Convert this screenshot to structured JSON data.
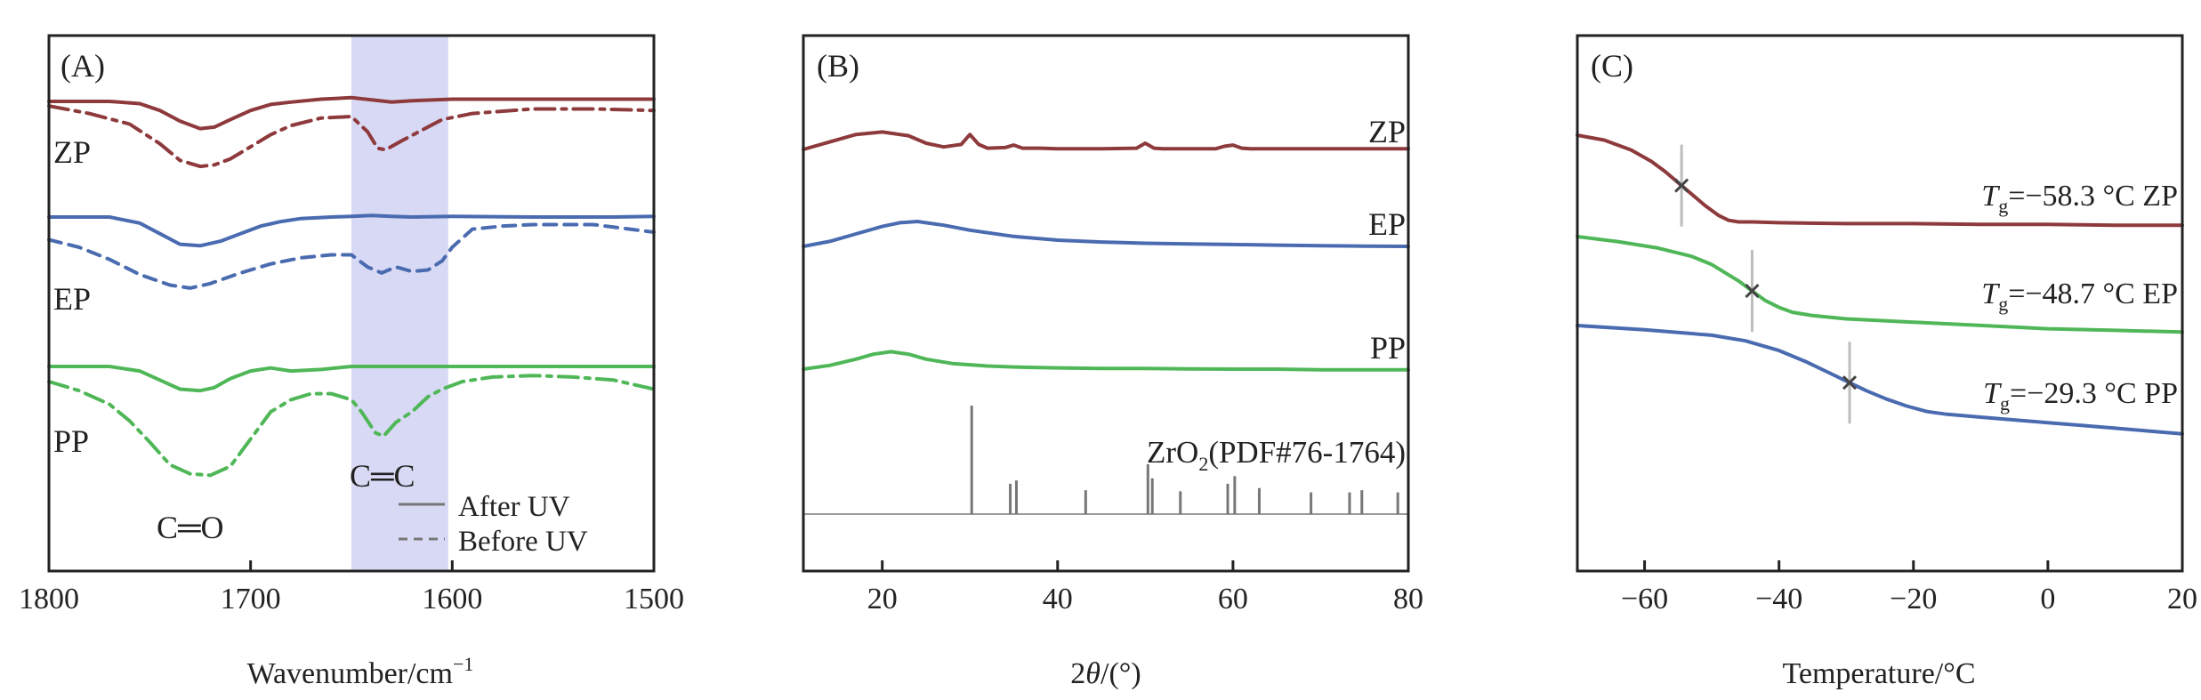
{
  "chart_data": [
    {
      "panel_label": "(A)",
      "type": "line",
      "title": "",
      "xlabel": "Wavenumber/cm",
      "xlabel_sup": "−1",
      "ylabel": "",
      "xlim": [
        1800,
        1500
      ],
      "x_reversed": true,
      "xticks": [
        "1800",
        "1700",
        "1600",
        "1500"
      ],
      "xtick_values": [
        1800,
        1700,
        1600,
        1500
      ],
      "highlight_band": {
        "from": 1650,
        "to": 1602,
        "color": "#d8d9f4"
      },
      "colors": {
        "ZP": "#8e3a3c",
        "EP": "#4a6bb0",
        "PP": "#4fb757"
      },
      "series_labels": [
        "ZP",
        "EP",
        "PP"
      ],
      "annotations": {
        "carbonyl": "C═O",
        "alkene": "C═C"
      },
      "legend": {
        "after": "After UV",
        "before": "Before UV",
        "position": "bottom-right"
      },
      "series": [
        {
          "name": "ZP After UV",
          "style": "solid",
          "color": "#8e3a3c",
          "x": [
            1800,
            1770,
            1755,
            1745,
            1735,
            1725,
            1718,
            1710,
            1700,
            1690,
            1680,
            1665,
            1650,
            1640,
            1630,
            1620,
            1600,
            1580,
            1560,
            1540,
            1500
          ],
          "y": [
            0.0,
            0.0,
            -0.15,
            -0.6,
            -1.3,
            -1.8,
            -1.7,
            -1.2,
            -0.6,
            -0.2,
            -0.05,
            0.15,
            0.25,
            0.1,
            -0.05,
            0.05,
            0.15,
            0.15,
            0.15,
            0.15,
            0.15
          ]
        },
        {
          "name": "ZP Before UV",
          "style": "dash-dot",
          "color": "#8e3a3c",
          "x": [
            1800,
            1780,
            1760,
            1745,
            1735,
            1725,
            1718,
            1710,
            1700,
            1690,
            1680,
            1665,
            1650,
            1642,
            1637,
            1633,
            1625,
            1615,
            1605,
            1590,
            1560,
            1530,
            1500
          ],
          "y": [
            -0.3,
            -0.8,
            -1.5,
            -2.8,
            -3.9,
            -4.3,
            -4.2,
            -3.8,
            -3.0,
            -2.2,
            -1.6,
            -1.1,
            -1.0,
            -2.0,
            -3.1,
            -3.2,
            -2.6,
            -1.9,
            -1.2,
            -0.8,
            -0.5,
            -0.5,
            -0.6
          ]
        },
        {
          "name": "EP After UV",
          "style": "solid",
          "color": "#4a6bb0",
          "x": [
            1800,
            1770,
            1755,
            1745,
            1735,
            1725,
            1715,
            1705,
            1695,
            1685,
            1675,
            1660,
            1650,
            1640,
            1630,
            1620,
            1600,
            1560,
            1520,
            1500
          ],
          "y": [
            0.0,
            0.0,
            -0.4,
            -1.1,
            -1.8,
            -1.9,
            -1.6,
            -1.1,
            -0.6,
            -0.3,
            -0.1,
            0.0,
            0.05,
            0.1,
            0.05,
            0.0,
            0.05,
            0.0,
            0.0,
            0.05
          ]
        },
        {
          "name": "EP Before UV",
          "style": "dashed",
          "color": "#4a6bb0",
          "x": [
            1800,
            1785,
            1770,
            1755,
            1740,
            1730,
            1720,
            1705,
            1690,
            1675,
            1660,
            1650,
            1642,
            1635,
            1628,
            1620,
            1612,
            1605,
            1600,
            1590,
            1575,
            1560,
            1530,
            1500
          ],
          "y": [
            -1.5,
            -2.0,
            -2.8,
            -3.8,
            -4.5,
            -4.7,
            -4.4,
            -3.7,
            -3.1,
            -2.7,
            -2.5,
            -2.5,
            -3.3,
            -3.7,
            -3.3,
            -3.6,
            -3.5,
            -2.9,
            -2.0,
            -0.8,
            -0.6,
            -0.5,
            -0.5,
            -1.0
          ]
        },
        {
          "name": "PP After UV",
          "style": "solid",
          "color": "#4fb757",
          "x": [
            1800,
            1770,
            1755,
            1745,
            1735,
            1725,
            1718,
            1710,
            1700,
            1690,
            1680,
            1665,
            1650,
            1600,
            1560,
            1500
          ],
          "y": [
            0.0,
            0.0,
            -0.3,
            -0.9,
            -1.5,
            -1.6,
            -1.4,
            -0.8,
            -0.3,
            -0.1,
            -0.3,
            -0.2,
            0.0,
            0.0,
            0.0,
            0.0
          ]
        },
        {
          "name": "PP Before UV",
          "style": "dash-dot",
          "color": "#4fb757",
          "x": [
            1800,
            1785,
            1770,
            1760,
            1750,
            1740,
            1730,
            1720,
            1710,
            1700,
            1690,
            1680,
            1670,
            1660,
            1650,
            1645,
            1638,
            1634,
            1628,
            1620,
            1612,
            1605,
            1595,
            1580,
            1560,
            1540,
            1520,
            1500
          ],
          "y": [
            -1.0,
            -1.6,
            -2.5,
            -3.6,
            -5.0,
            -6.5,
            -7.1,
            -7.2,
            -6.6,
            -4.8,
            -3.0,
            -2.2,
            -1.8,
            -1.8,
            -2.2,
            -3.0,
            -4.4,
            -4.6,
            -3.7,
            -3.0,
            -2.0,
            -1.5,
            -1.0,
            -0.7,
            -0.6,
            -0.7,
            -0.9,
            -1.5
          ]
        }
      ]
    },
    {
      "panel_label": "(B)",
      "type": "line",
      "title": "",
      "xlabel": "2θ/(°)",
      "xlabel_prefix": "2",
      "xlabel_theta": "θ",
      "xlabel_suffix": "/(°)",
      "ylabel": "",
      "xlim": [
        11,
        80
      ],
      "xticks": [
        "20",
        "40",
        "60",
        "80"
      ],
      "xtick_values": [
        20,
        40,
        60,
        80
      ],
      "colors": {
        "ZP": "#8e3a3c",
        "EP": "#4a6bb0",
        "PP": "#4fb757",
        "ref": "#777777"
      },
      "series_labels": [
        "ZP",
        "EP",
        "PP"
      ],
      "reference": {
        "label_main": "ZrO",
        "label_sub": "2",
        "label_suffix": "(PDF#76-1764)",
        "peaks": [
          {
            "x": 30.2,
            "h": 1.0
          },
          {
            "x": 34.6,
            "h": 0.28
          },
          {
            "x": 35.3,
            "h": 0.31
          },
          {
            "x": 43.2,
            "h": 0.22
          },
          {
            "x": 50.3,
            "h": 0.46
          },
          {
            "x": 50.8,
            "h": 0.33
          },
          {
            "x": 54.0,
            "h": 0.21
          },
          {
            "x": 59.4,
            "h": 0.28
          },
          {
            "x": 60.2,
            "h": 0.35
          },
          {
            "x": 63.0,
            "h": 0.24
          },
          {
            "x": 68.9,
            "h": 0.2
          },
          {
            "x": 73.3,
            "h": 0.2
          },
          {
            "x": 74.7,
            "h": 0.22
          },
          {
            "x": 78.8,
            "h": 0.2
          }
        ]
      },
      "series": [
        {
          "name": "ZP",
          "color": "#8e3a3c",
          "x": [
            11,
            14,
            17,
            20,
            23,
            25,
            27,
            29,
            30,
            31,
            32,
            34,
            35,
            36,
            38,
            40,
            45,
            49,
            50,
            51,
            52,
            55,
            58,
            59,
            60,
            61,
            62,
            65,
            70,
            75,
            80
          ],
          "y": [
            0.0,
            0.6,
            1.2,
            1.4,
            1.1,
            0.5,
            0.2,
            0.4,
            1.2,
            0.4,
            0.1,
            0.15,
            0.35,
            0.1,
            0.1,
            0.05,
            0.05,
            0.1,
            0.5,
            0.1,
            0.05,
            0.05,
            0.05,
            0.25,
            0.35,
            0.1,
            0.05,
            0.05,
            0.05,
            0.05,
            0.05
          ]
        },
        {
          "name": "EP",
          "color": "#4a6bb0",
          "x": [
            11,
            14,
            17,
            20,
            22,
            24,
            27,
            30,
            35,
            40,
            45,
            50,
            55,
            60,
            65,
            70,
            75,
            80
          ],
          "y": [
            0.0,
            0.4,
            1.0,
            1.6,
            1.9,
            2.0,
            1.7,
            1.3,
            0.8,
            0.5,
            0.35,
            0.25,
            0.2,
            0.15,
            0.1,
            0.05,
            0.02,
            0.0
          ]
        },
        {
          "name": "PP",
          "color": "#4fb757",
          "x": [
            11,
            14,
            17,
            19,
            21,
            23,
            25,
            28,
            32,
            36,
            40,
            45,
            50,
            55,
            60,
            65,
            70,
            75,
            80
          ],
          "y": [
            0.0,
            0.3,
            0.8,
            1.2,
            1.4,
            1.2,
            0.8,
            0.45,
            0.25,
            0.15,
            0.1,
            0.05,
            0.05,
            0.02,
            0.0,
            0.0,
            -0.05,
            -0.05,
            -0.05
          ]
        }
      ]
    },
    {
      "panel_label": "(C)",
      "type": "line",
      "title": "",
      "xlabel": "Temperature/°C",
      "ylabel": "",
      "xlim": [
        -70,
        20
      ],
      "xticks": [
        "−60",
        "−40",
        "−20",
        "0",
        "20"
      ],
      "xtick_values": [
        -60,
        -40,
        -20,
        0,
        20
      ],
      "colors": {
        "ZP": "#8e3a3c",
        "EP": "#4fb757",
        "PP": "#4a6bb0",
        "marker": "#444444"
      },
      "tg_labels": [
        {
          "sym": "T",
          "sub": "g",
          "text": "=−58.3 °C ZP"
        },
        {
          "sym": "T",
          "sub": "g",
          "text": "=−48.7 °C EP"
        },
        {
          "sym": "T",
          "sub": "g",
          "text": "=−29.3 °C PP"
        }
      ],
      "series": [
        {
          "name": "ZP",
          "color": "#8e3a3c",
          "tg_x": -54.5,
          "x": [
            -70,
            -66,
            -62,
            -59,
            -57,
            -55,
            -53,
            -51,
            -49,
            -47.5,
            -46,
            -44,
            -40,
            -30,
            -20,
            -10,
            0,
            10,
            20
          ],
          "y": [
            0.0,
            -0.3,
            -0.9,
            -1.6,
            -2.2,
            -2.9,
            -3.6,
            -4.3,
            -4.9,
            -5.2,
            -5.3,
            -5.3,
            -5.35,
            -5.4,
            -5.4,
            -5.45,
            -5.45,
            -5.5,
            -5.5
          ]
        },
        {
          "name": "EP",
          "color": "#4fb757",
          "tg_x": -44,
          "x": [
            -70,
            -64,
            -58,
            -53,
            -50,
            -48,
            -46,
            -44,
            -42,
            -40,
            -38,
            -35,
            -30,
            -20,
            -10,
            0,
            10,
            20
          ],
          "y": [
            0.0,
            -0.3,
            -0.7,
            -1.2,
            -1.7,
            -2.2,
            -2.7,
            -3.3,
            -3.9,
            -4.3,
            -4.6,
            -4.8,
            -5.0,
            -5.2,
            -5.4,
            -5.6,
            -5.7,
            -5.8
          ]
        },
        {
          "name": "PP",
          "color": "#4a6bb0",
          "tg_x": -29.5,
          "x": [
            -70,
            -60,
            -50,
            -45,
            -40,
            -36,
            -33,
            -30,
            -27,
            -24,
            -21,
            -18,
            -15,
            -10,
            -5,
            0,
            5,
            10,
            15,
            20
          ],
          "y": [
            0.0,
            -0.3,
            -0.7,
            -1.1,
            -1.8,
            -2.6,
            -3.3,
            -4.0,
            -4.7,
            -5.3,
            -5.8,
            -6.2,
            -6.4,
            -6.6,
            -6.8,
            -7.0,
            -7.2,
            -7.4,
            -7.6,
            -7.8
          ]
        }
      ]
    }
  ]
}
